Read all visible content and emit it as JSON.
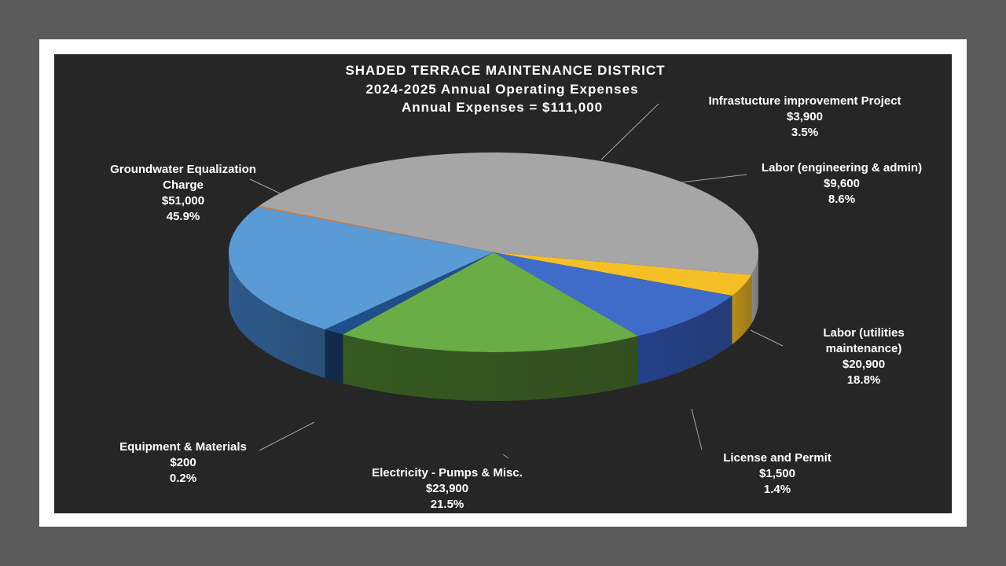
{
  "chart_data": {
    "type": "pie",
    "title_lines": [
      "SHADED TERRACE MAINTENANCE DISTRICT",
      "2024-2025 Annual Operating Expenses",
      "Annual Expenses = $111,000"
    ],
    "slices": [
      {
        "label_lines": [
          "Groundwater Equalization",
          "Charge"
        ],
        "amount": "$51,000",
        "percent": "45.9%",
        "value": 51000,
        "color": "#a6a6a6",
        "side_color": "#8a8a8a"
      },
      {
        "label_lines": [
          "Infrastucture improvement Project"
        ],
        "amount": "$3,900",
        "percent": "3.5%",
        "value": 3900,
        "color": "#f5c026",
        "side_color": "#b88e18"
      },
      {
        "label_lines": [
          "Labor (engineering & admin)"
        ],
        "amount": "$9,600",
        "percent": "8.6%",
        "value": 9600,
        "color": "#3f6cc9",
        "side_color": "#23418a"
      },
      {
        "label_lines": [
          "Labor (utilities",
          "maintenance)"
        ],
        "amount": "$20,900",
        "percent": "18.8%",
        "value": 20900,
        "color": "#6aac45",
        "side_color": "#35591f"
      },
      {
        "label_lines": [
          "License and Permit"
        ],
        "amount": "$1,500",
        "percent": "1.4%",
        "value": 1500,
        "color": "#1f4f8a",
        "side_color": "#0f2a4d"
      },
      {
        "label_lines": [
          "Electricity - Pumps & Misc."
        ],
        "amount": "$23,900",
        "percent": "21.5%",
        "value": 23900,
        "color": "#5b9bd5",
        "side_color": "#2c5a8c"
      },
      {
        "label_lines": [
          "Equipment & Materials"
        ],
        "amount": "$200",
        "percent": "0.2%",
        "value": 200,
        "color": "#ed7d31",
        "side_color": "#c05a18"
      }
    ]
  }
}
